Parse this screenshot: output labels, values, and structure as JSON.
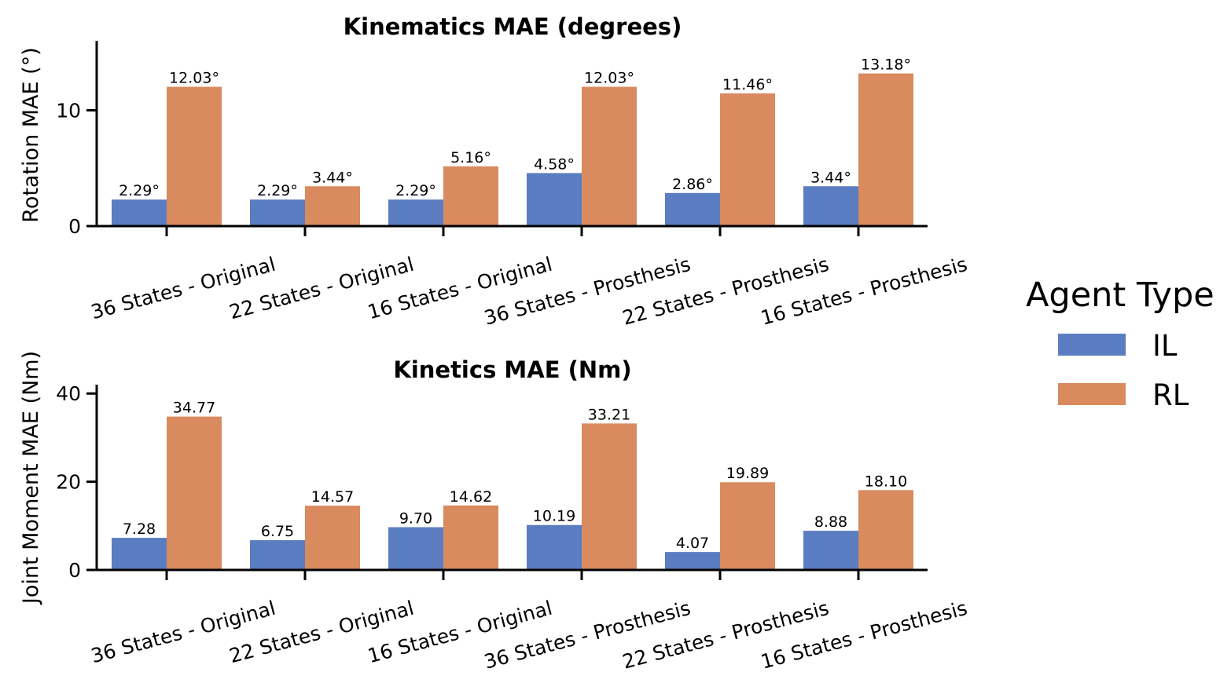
{
  "chart_data": [
    {
      "type": "bar",
      "title": "Kinematics MAE (degrees)",
      "xlabel": "",
      "ylabel": "Rotation MAE (°)",
      "ylim": [
        0,
        16
      ],
      "yticks": [
        0,
        10
      ],
      "categories": [
        "36 States - Original",
        "22 States - Original",
        "16 States - Original",
        "36 States - Prosthesis",
        "22 States - Prosthesis",
        "16 States - Prosthesis"
      ],
      "series": [
        {
          "name": "IL",
          "color": "#5A7DC2",
          "values": [
            2.29,
            2.29,
            2.29,
            4.58,
            2.86,
            3.44
          ],
          "labels": [
            "2.29°",
            "2.29°",
            "2.29°",
            "4.58°",
            "2.86°",
            "3.44°"
          ]
        },
        {
          "name": "RL",
          "color": "#D98A5E",
          "values": [
            12.03,
            3.44,
            5.16,
            12.03,
            11.46,
            13.18
          ],
          "labels": [
            "12.03°",
            "3.44°",
            "5.16°",
            "12.03°",
            "11.46°",
            "13.18°"
          ]
        }
      ],
      "grid": false
    },
    {
      "type": "bar",
      "title": "Kinetics MAE (Nm)",
      "xlabel": "",
      "ylabel": "Joint Moment MAE (Nm)",
      "ylim": [
        0,
        42
      ],
      "yticks": [
        0,
        20,
        40
      ],
      "categories": [
        "36 States - Original",
        "22 States - Original",
        "16 States - Original",
        "36 States - Prosthesis",
        "22 States - Prosthesis",
        "16 States - Prosthesis"
      ],
      "series": [
        {
          "name": "IL",
          "color": "#5A7DC2",
          "values": [
            7.28,
            6.75,
            9.7,
            10.19,
            4.07,
            8.88
          ],
          "labels": [
            "7.28",
            "6.75",
            "9.70",
            "10.19",
            "4.07",
            "8.88"
          ]
        },
        {
          "name": "RL",
          "color": "#D98A5E",
          "values": [
            34.77,
            14.57,
            14.62,
            33.21,
            19.89,
            18.1
          ],
          "labels": [
            "34.77",
            "14.57",
            "14.62",
            "33.21",
            "19.89",
            "18.10"
          ]
        }
      ],
      "grid": false
    }
  ],
  "legend": {
    "title": "Agent Type",
    "placement": "right",
    "items": [
      {
        "label": "IL",
        "color": "#5A7DC2"
      },
      {
        "label": "RL",
        "color": "#D98A5E"
      }
    ]
  }
}
